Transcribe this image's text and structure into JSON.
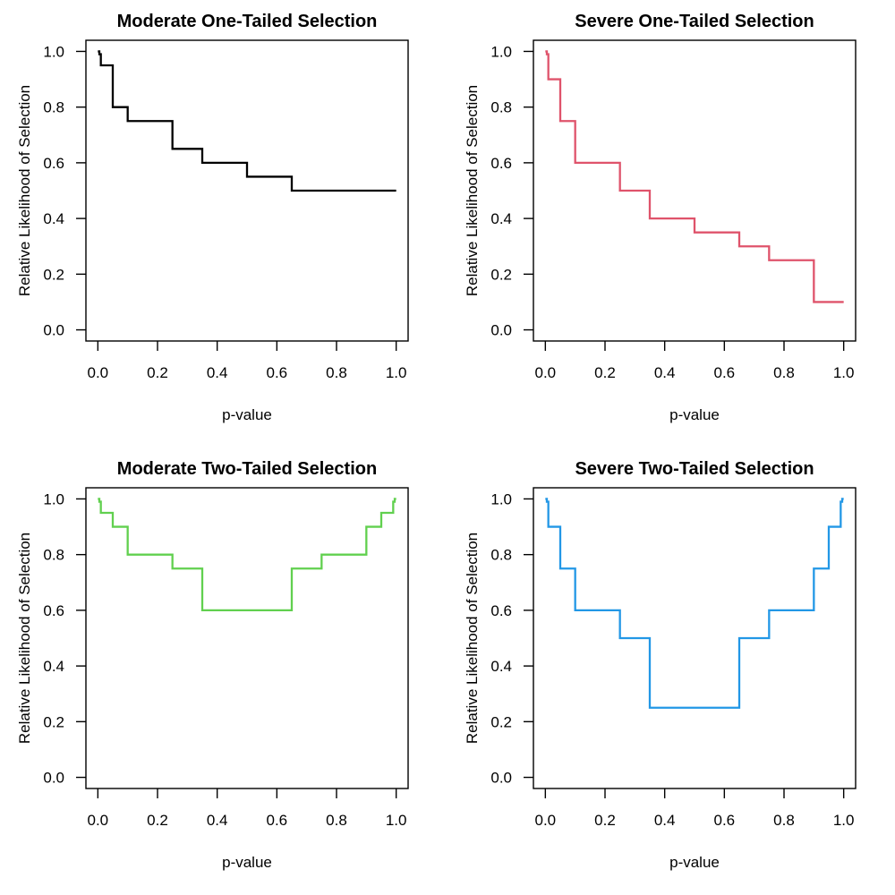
{
  "figure": {
    "background": "#ffffff",
    "layout": "2x2-grid",
    "description_visible_text_only": true
  },
  "chart_data": [
    {
      "type": "line",
      "subtype": "step",
      "title": "Moderate One-Tailed Selection",
      "xlabel": "p-value",
      "ylabel": "Relative Likelihood of Selection",
      "color": "#000000",
      "xlim": [
        0,
        1
      ],
      "ylim": [
        0,
        1
      ],
      "x_tick_values": [
        0,
        0.2,
        0.4,
        0.6,
        0.8,
        1.0
      ],
      "x_tick_labels": [
        "0.0",
        "0.2",
        "0.4",
        "0.6",
        "0.8",
        "1.0"
      ],
      "y_tick_values": [
        0,
        0.2,
        0.4,
        0.6,
        0.8,
        1.0
      ],
      "y_tick_labels": [
        "0.0",
        "0.2",
        "0.4",
        "0.6",
        "0.8",
        "1.0"
      ],
      "p_interval_upper_bounds": [
        0.005,
        0.01,
        0.05,
        0.1,
        0.25,
        0.35,
        0.5,
        0.65,
        0.75,
        0.9,
        0.95,
        0.99,
        0.995,
        1.0
      ],
      "weights": [
        1.0,
        0.99,
        0.95,
        0.8,
        0.75,
        0.65,
        0.6,
        0.55,
        0.5,
        0.5,
        0.5,
        0.5,
        0.5,
        0.5
      ]
    },
    {
      "type": "line",
      "subtype": "step",
      "title": "Severe One-Tailed Selection",
      "xlabel": "p-value",
      "ylabel": "Relative Likelihood of Selection",
      "color": "#DF536B",
      "xlim": [
        0,
        1
      ],
      "ylim": [
        0,
        1
      ],
      "x_tick_values": [
        0,
        0.2,
        0.4,
        0.6,
        0.8,
        1.0
      ],
      "x_tick_labels": [
        "0.0",
        "0.2",
        "0.4",
        "0.6",
        "0.8",
        "1.0"
      ],
      "y_tick_values": [
        0,
        0.2,
        0.4,
        0.6,
        0.8,
        1.0
      ],
      "y_tick_labels": [
        "0.0",
        "0.2",
        "0.4",
        "0.6",
        "0.8",
        "1.0"
      ],
      "p_interval_upper_bounds": [
        0.005,
        0.01,
        0.05,
        0.1,
        0.25,
        0.35,
        0.5,
        0.65,
        0.75,
        0.9,
        0.95,
        0.99,
        0.995,
        1.0
      ],
      "weights": [
        1.0,
        0.99,
        0.9,
        0.75,
        0.6,
        0.5,
        0.4,
        0.35,
        0.3,
        0.25,
        0.1,
        0.1,
        0.1,
        0.1
      ]
    },
    {
      "type": "line",
      "subtype": "step",
      "title": "Moderate Two-Tailed Selection",
      "xlabel": "p-value",
      "ylabel": "Relative Likelihood of Selection",
      "color": "#61D04F",
      "xlim": [
        0,
        1
      ],
      "ylim": [
        0,
        1
      ],
      "x_tick_values": [
        0,
        0.2,
        0.4,
        0.6,
        0.8,
        1.0
      ],
      "x_tick_labels": [
        "0.0",
        "0.2",
        "0.4",
        "0.6",
        "0.8",
        "1.0"
      ],
      "y_tick_values": [
        0,
        0.2,
        0.4,
        0.6,
        0.8,
        1.0
      ],
      "y_tick_labels": [
        "0.0",
        "0.2",
        "0.4",
        "0.6",
        "0.8",
        "1.0"
      ],
      "p_interval_upper_bounds": [
        0.005,
        0.01,
        0.05,
        0.1,
        0.25,
        0.35,
        0.5,
        0.65,
        0.75,
        0.9,
        0.95,
        0.99,
        0.995,
        1.0
      ],
      "weights": [
        1.0,
        0.99,
        0.95,
        0.9,
        0.8,
        0.75,
        0.6,
        0.6,
        0.75,
        0.8,
        0.9,
        0.95,
        0.99,
        1.0
      ]
    },
    {
      "type": "line",
      "subtype": "step",
      "title": "Severe Two-Tailed Selection",
      "xlabel": "p-value",
      "ylabel": "Relative Likelihood of Selection",
      "color": "#2297E6",
      "xlim": [
        0,
        1
      ],
      "ylim": [
        0,
        1
      ],
      "x_tick_values": [
        0,
        0.2,
        0.4,
        0.6,
        0.8,
        1.0
      ],
      "x_tick_labels": [
        "0.0",
        "0.2",
        "0.4",
        "0.6",
        "0.8",
        "1.0"
      ],
      "y_tick_values": [
        0,
        0.2,
        0.4,
        0.6,
        0.8,
        1.0
      ],
      "y_tick_labels": [
        "0.0",
        "0.2",
        "0.4",
        "0.6",
        "0.8",
        "1.0"
      ],
      "p_interval_upper_bounds": [
        0.005,
        0.01,
        0.05,
        0.1,
        0.25,
        0.35,
        0.5,
        0.65,
        0.75,
        0.9,
        0.95,
        0.99,
        0.995,
        1.0
      ],
      "weights": [
        1.0,
        0.99,
        0.9,
        0.75,
        0.6,
        0.5,
        0.25,
        0.25,
        0.5,
        0.6,
        0.75,
        0.9,
        0.99,
        1.0
      ]
    }
  ]
}
